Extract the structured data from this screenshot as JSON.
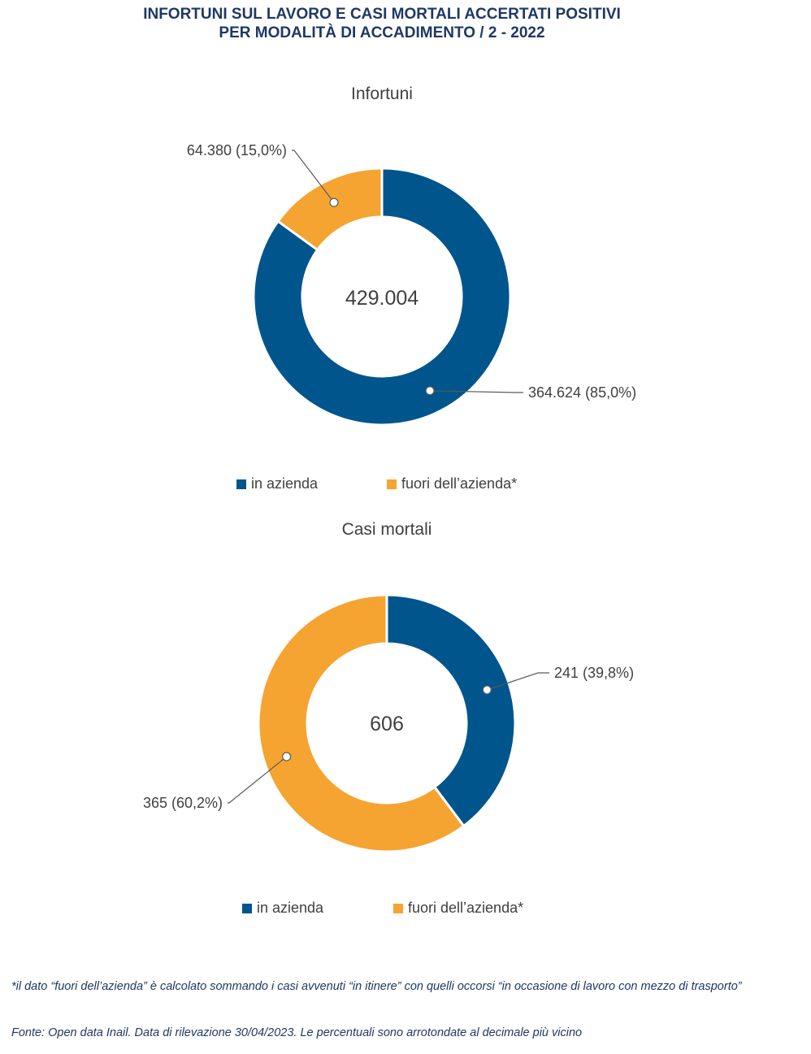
{
  "title": {
    "line1": "INFORTUNI SUL LAVORO E CASI MORTALI ACCERTATI POSITIVI",
    "line2": "PER MODALITÀ DI ACCADIMENTO / 2 - 2022"
  },
  "colors": {
    "in_azienda": "#00558c",
    "fuori_azienda": "#f5a431"
  },
  "chart_data": [
    {
      "type": "pie",
      "title": "Infortuni",
      "total_label": "429.004",
      "categories": [
        "in azienda",
        "fuori dell’azienda*"
      ],
      "values": [
        364624,
        64380
      ],
      "data_labels": [
        "364.624 (85,0%)",
        "64.380 (15,0%)"
      ],
      "legend": [
        "in azienda",
        "fuori dell’azienda*"
      ],
      "legend_position": "bottom"
    },
    {
      "type": "pie",
      "title": "Casi mortali",
      "total_label": "606",
      "categories": [
        "in azienda",
        "fuori dell’azienda*"
      ],
      "values": [
        241,
        365
      ],
      "data_labels": [
        "241 (39,8%)",
        "365 (60,2%)"
      ],
      "legend": [
        "in azienda",
        "fuori dell’azienda*"
      ],
      "legend_position": "bottom"
    }
  ],
  "footnotes": {
    "note": "*il dato “fuori dell’azienda” è calcolato sommando i casi avvenuti “in itinere” con quelli occorsi “in occasione di lavoro con mezzo di trasporto”",
    "source": "Fonte: Open data Inail. Data di rilevazione 30/04/2023. Le percentuali sono arrotondate al decimale più vicino"
  }
}
